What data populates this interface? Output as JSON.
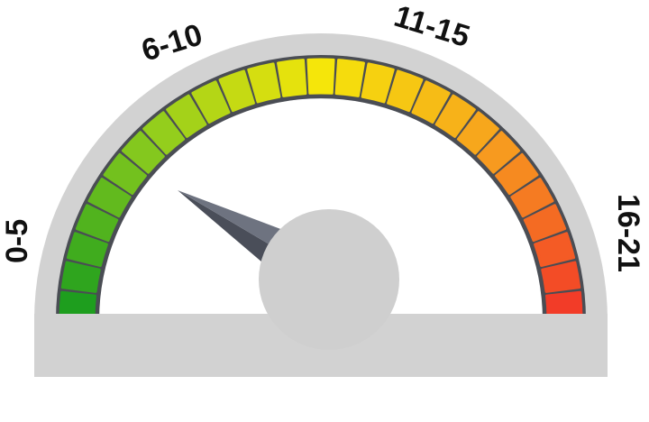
{
  "gauge": {
    "range_labels": [
      "0-5",
      "6-10",
      "11-15",
      "16-21"
    ],
    "segment_count": 27,
    "color_stops": [
      "#1e9e1e",
      "#8ccc1e",
      "#f5e60a",
      "#f7a21e",
      "#f23c28"
    ],
    "needle_value_fraction": 0.09,
    "colors": {
      "frame": "#d2d2d2",
      "track": "#4a4d54",
      "needle_dark": "#4a4e59",
      "needle_light": "#6e7380",
      "hub": "#cfcfcf"
    }
  }
}
